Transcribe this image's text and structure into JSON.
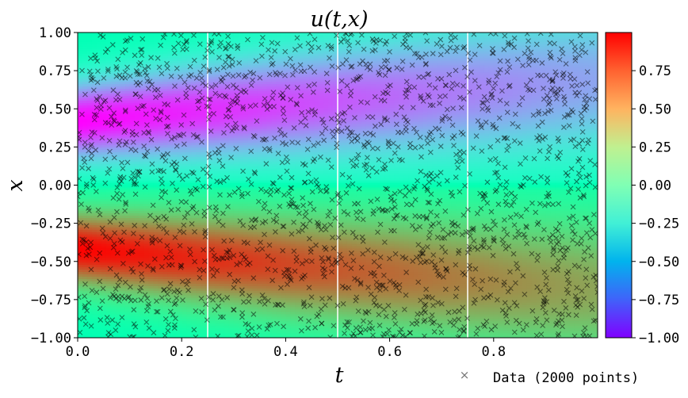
{
  "chart_data": {
    "type": "heatmap",
    "title": "u(t,x)",
    "xlabel": "t",
    "ylabel": "x",
    "xlim": [
      0.0,
      1.0
    ],
    "ylim": [
      -1.0,
      1.0
    ],
    "x_ticks": [
      0.0,
      0.2,
      0.4,
      0.6,
      0.8
    ],
    "x_tick_labels": [
      "0.0",
      "0.2",
      "0.4",
      "0.6",
      "0.8"
    ],
    "y_ticks": [
      -1.0,
      -0.75,
      -0.5,
      -0.25,
      0.0,
      0.25,
      0.5,
      0.75,
      1.0
    ],
    "y_tick_labels": [
      "−1.00",
      "−0.75",
      "−0.50",
      "−0.25",
      "0.00",
      "0.25",
      "0.50",
      "0.75",
      "1.00"
    ],
    "colorbar": {
      "colormap": "rainbow",
      "range": [
        -1.0,
        1.0
      ],
      "ticks": [
        -1.0,
        -0.75,
        -0.5,
        -0.25,
        0.0,
        0.25,
        0.5,
        0.75
      ],
      "tick_labels": [
        "−1.00",
        "−0.75",
        "−0.50",
        "−0.25",
        "0.00",
        "0.25",
        "0.50",
        "0.75"
      ]
    },
    "snapshot_lines_t": [
      0.25,
      0.5,
      0.75
    ],
    "scatter": {
      "name": "Data (2000 points)",
      "count": 2000,
      "marker": "x",
      "color": "#000000"
    },
    "legend": {
      "placement": "bottom-right",
      "entries": [
        "Data (2000 points)"
      ]
    },
    "grid": false
  }
}
